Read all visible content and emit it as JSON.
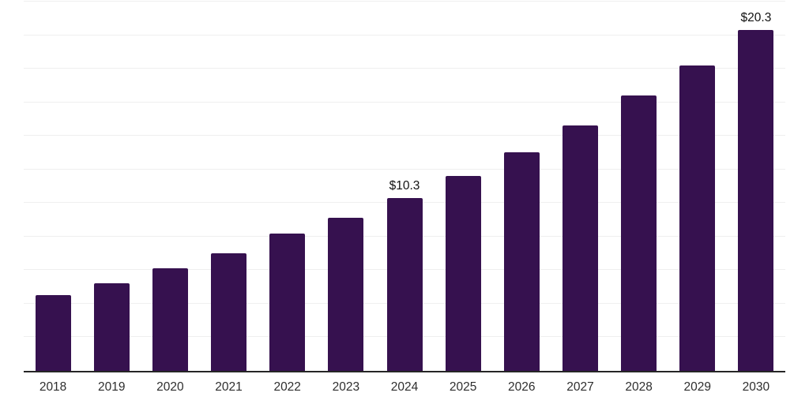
{
  "chart_data": {
    "type": "bar",
    "categories": [
      "2018",
      "2019",
      "2020",
      "2021",
      "2022",
      "2023",
      "2024",
      "2025",
      "2026",
      "2027",
      "2028",
      "2029",
      "2030"
    ],
    "values": [
      4.5,
      5.2,
      6.1,
      7.0,
      8.2,
      9.1,
      10.3,
      11.6,
      13.0,
      14.6,
      16.4,
      18.2,
      20.3
    ],
    "annotations": [
      {
        "category_index": 6,
        "label": "$10.3"
      },
      {
        "category_index": 12,
        "label": "$20.3"
      }
    ],
    "title": "",
    "xlabel": "",
    "ylabel": "",
    "ylim": [
      0,
      22
    ],
    "gridline_step": 2,
    "grid": "horizontal",
    "legend": "none",
    "bar_color": "#36114F",
    "axis_line_color": "#262626",
    "gridline_color": "#efefef",
    "label_color": "#111111",
    "tick_label_color": "#2e2e2e"
  }
}
